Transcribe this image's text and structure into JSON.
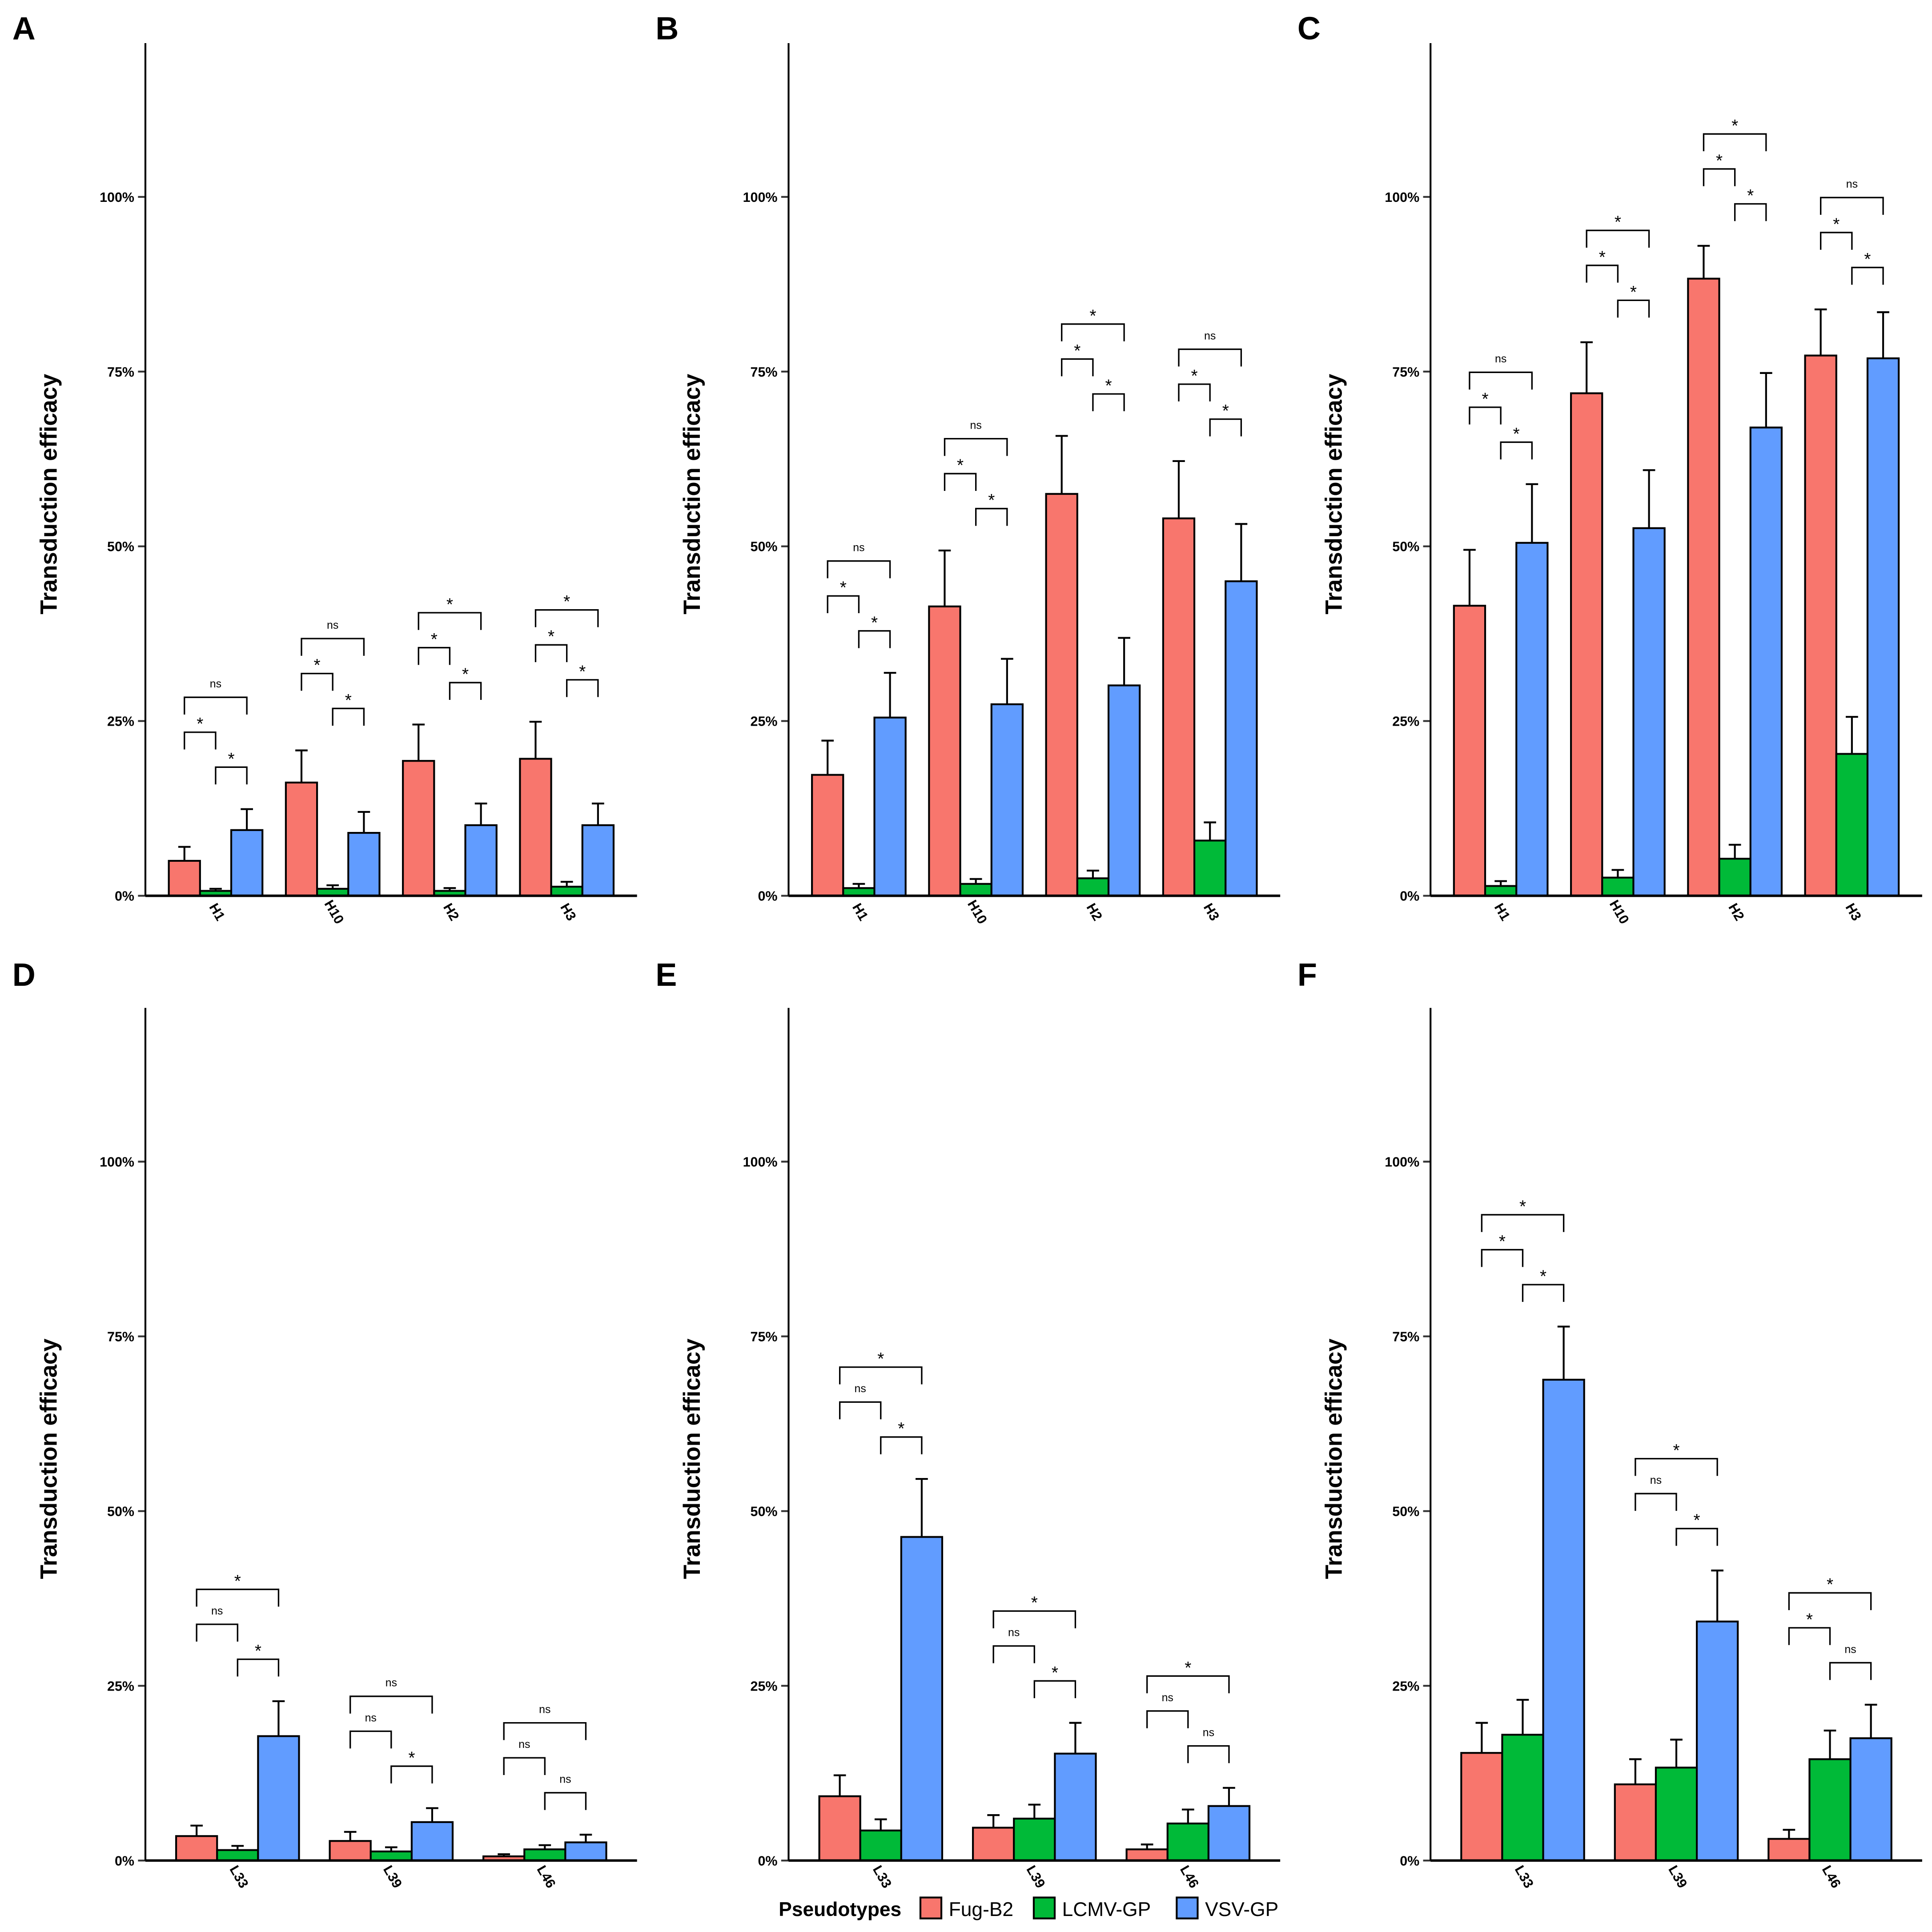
{
  "legend": {
    "title": "Pseudotypes",
    "position": "bottom"
  },
  "colors": {
    "Fug-B2": "#F8766D",
    "LCMV-GP": "#00BA38",
    "VSV-GP": "#619CFF"
  },
  "chart_data": [
    {
      "panel": "A",
      "type": "bar",
      "ylabel": "Transduction efficacy",
      "ylim": [
        0,
        122
      ],
      "yticks": [
        "0%",
        "25%",
        "50%",
        "75%",
        "100%"
      ],
      "categories": [
        "H1",
        "H10",
        "H2",
        "H3"
      ],
      "series": [
        {
          "name": "Fug-B2",
          "values": [
            5.0,
            16.2,
            19.3,
            19.6
          ],
          "errors": [
            2.0,
            4.6,
            5.2,
            5.3
          ]
        },
        {
          "name": "LCMV-GP",
          "values": [
            0.7,
            1.0,
            0.7,
            1.3
          ],
          "errors": [
            0.3,
            0.5,
            0.4,
            0.7
          ]
        },
        {
          "name": "VSV-GP",
          "values": [
            9.4,
            9.0,
            10.1,
            10.1
          ],
          "errors": [
            3.0,
            3.0,
            3.1,
            3.1
          ]
        }
      ],
      "significance": [
        [
          "*",
          "*",
          "ns"
        ],
        [
          "*",
          "*",
          "ns"
        ],
        [
          "*",
          "*",
          "*"
        ],
        [
          "*",
          "*",
          "*"
        ]
      ]
    },
    {
      "panel": "B",
      "type": "bar",
      "ylabel": "Transduction efficacy",
      "ylim": [
        0,
        122
      ],
      "yticks": [
        "0%",
        "25%",
        "50%",
        "75%",
        "100%"
      ],
      "categories": [
        "H1",
        "H10",
        "H2",
        "H3"
      ],
      "series": [
        {
          "name": "Fug-B2",
          "values": [
            17.3,
            41.4,
            57.5,
            54.0
          ],
          "errors": [
            4.9,
            8.0,
            8.3,
            8.2
          ]
        },
        {
          "name": "LCMV-GP",
          "values": [
            1.1,
            1.7,
            2.5,
            7.9
          ],
          "errors": [
            0.6,
            0.7,
            1.1,
            2.6
          ]
        },
        {
          "name": "VSV-GP",
          "values": [
            25.5,
            27.4,
            30.1,
            45.0
          ],
          "errors": [
            6.4,
            6.5,
            6.8,
            8.2
          ]
        }
      ],
      "significance": [
        [
          "*",
          "*",
          "ns"
        ],
        [
          "*",
          "*",
          "ns"
        ],
        [
          "*",
          "*",
          "*"
        ],
        [
          "*",
          "*",
          "ns"
        ]
      ]
    },
    {
      "panel": "C",
      "type": "bar",
      "ylabel": "Transduction efficacy",
      "ylim": [
        0,
        122
      ],
      "yticks": [
        "0%",
        "25%",
        "50%",
        "75%",
        "100%"
      ],
      "categories": [
        "H1",
        "H10",
        "H2",
        "H3"
      ],
      "series": [
        {
          "name": "Fug-B2",
          "values": [
            41.5,
            71.9,
            88.3,
            77.3
          ],
          "errors": [
            8.0,
            7.3,
            4.7,
            6.6
          ]
        },
        {
          "name": "LCMV-GP",
          "values": [
            1.4,
            2.6,
            5.3,
            20.3
          ],
          "errors": [
            0.7,
            1.1,
            2.0,
            5.3
          ]
        },
        {
          "name": "VSV-GP",
          "values": [
            50.5,
            52.6,
            67.0,
            76.9
          ],
          "errors": [
            8.4,
            8.3,
            7.8,
            6.6
          ]
        }
      ],
      "significance": [
        [
          "*",
          "*",
          "ns"
        ],
        [
          "*",
          "*",
          "*"
        ],
        [
          "*",
          "*",
          "*"
        ],
        [
          "*",
          "*",
          "ns"
        ]
      ]
    },
    {
      "panel": "D",
      "type": "bar",
      "ylabel": "Transduction efficacy",
      "ylim": [
        0,
        122
      ],
      "yticks": [
        "0%",
        "25%",
        "50%",
        "75%",
        "100%"
      ],
      "categories": [
        "L33",
        "L39",
        "L46"
      ],
      "series": [
        {
          "name": "Fug-B2",
          "values": [
            3.5,
            2.8,
            0.6
          ],
          "errors": [
            1.5,
            1.3,
            0.3
          ]
        },
        {
          "name": "LCMV-GP",
          "values": [
            1.5,
            1.3,
            1.6
          ],
          "errors": [
            0.6,
            0.6,
            0.6
          ]
        },
        {
          "name": "VSV-GP",
          "values": [
            17.8,
            5.5,
            2.6
          ],
          "errors": [
            5.0,
            2.0,
            1.1
          ]
        }
      ],
      "significance": [
        [
          "ns",
          "*",
          "*"
        ],
        [
          "ns",
          "*",
          "ns"
        ],
        [
          "ns",
          "ns",
          "ns"
        ]
      ]
    },
    {
      "panel": "E",
      "type": "bar",
      "ylabel": "Transduction efficacy",
      "ylim": [
        0,
        122
      ],
      "yticks": [
        "0%",
        "25%",
        "50%",
        "75%",
        "100%"
      ],
      "categories": [
        "L33",
        "L39",
        "L46"
      ],
      "series": [
        {
          "name": "Fug-B2",
          "values": [
            9.2,
            4.7,
            1.6
          ],
          "errors": [
            3.0,
            1.8,
            0.7
          ]
        },
        {
          "name": "LCMV-GP",
          "values": [
            4.3,
            6.0,
            5.3
          ],
          "errors": [
            1.6,
            2.0,
            2.0
          ]
        },
        {
          "name": "VSV-GP",
          "values": [
            46.3,
            15.3,
            7.8
          ],
          "errors": [
            8.3,
            4.4,
            2.6
          ]
        }
      ],
      "significance": [
        [
          "ns",
          "*",
          "*"
        ],
        [
          "ns",
          "*",
          "*"
        ],
        [
          "ns",
          "ns",
          "*"
        ]
      ]
    },
    {
      "panel": "F",
      "type": "bar",
      "ylabel": "Transduction efficacy",
      "ylim": [
        0,
        122
      ],
      "yticks": [
        "0%",
        "25%",
        "50%",
        "75%",
        "100%"
      ],
      "categories": [
        "L33",
        "L39",
        "L46"
      ],
      "series": [
        {
          "name": "Fug-B2",
          "values": [
            15.4,
            10.9,
            3.1
          ],
          "errors": [
            4.3,
            3.6,
            1.3
          ]
        },
        {
          "name": "LCMV-GP",
          "values": [
            18.0,
            13.3,
            14.5
          ],
          "errors": [
            5.0,
            4.0,
            4.1
          ]
        },
        {
          "name": "VSV-GP",
          "values": [
            68.8,
            34.2,
            17.5
          ],
          "errors": [
            7.6,
            7.3,
            4.8
          ]
        }
      ],
      "significance": [
        [
          "*",
          "*",
          "*"
        ],
        [
          "ns",
          "*",
          "*"
        ],
        [
          "*",
          "ns",
          "*"
        ]
      ]
    }
  ]
}
